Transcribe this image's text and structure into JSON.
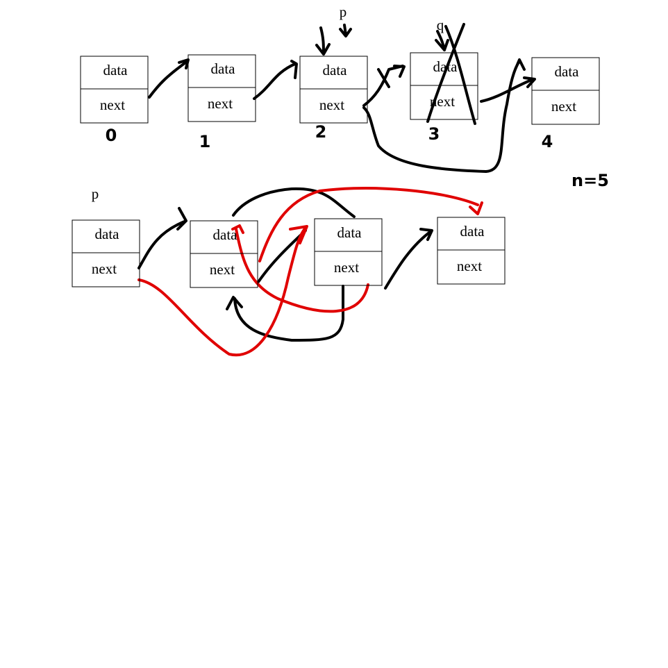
{
  "top_list": {
    "pointers": [
      "p",
      "q"
    ],
    "note": "n=5",
    "nodes": [
      {
        "data": "data",
        "next": "next",
        "index": "0"
      },
      {
        "data": "data",
        "next": "next",
        "index": "1"
      },
      {
        "data": "data",
        "next": "next",
        "index": "2"
      },
      {
        "data": "data",
        "next": "next",
        "index": "3"
      },
      {
        "data": "data",
        "next": "next",
        "index": "4"
      }
    ]
  },
  "bottom_list": {
    "pointer": "p",
    "nodes": [
      {
        "data": "data",
        "next": "next"
      },
      {
        "data": "data",
        "next": "next"
      },
      {
        "data": "data",
        "next": "next"
      },
      {
        "data": "data",
        "next": "next"
      }
    ]
  }
}
